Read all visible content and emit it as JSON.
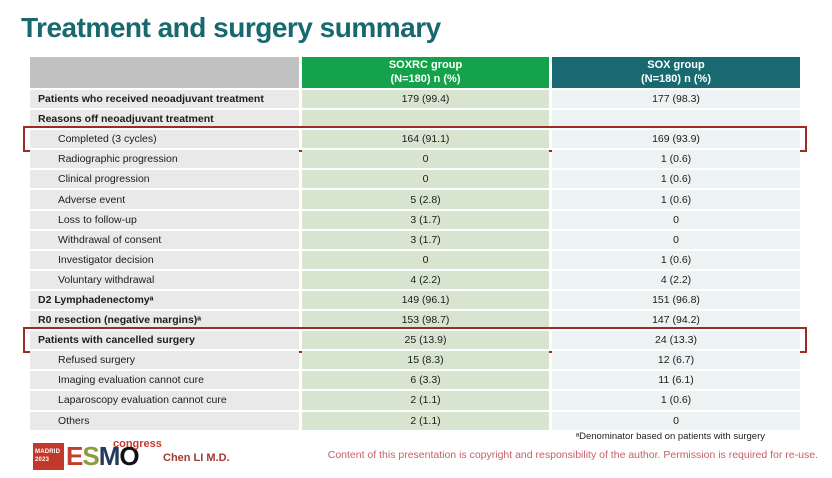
{
  "slide": {
    "title": "Treatment and surgery summary",
    "table": {
      "label_header": "",
      "col_headers": {
        "soxrc": "SOXRC group\n(N=180)  n (%)",
        "sox": "SOX group\n(N=180)  n (%)"
      },
      "rows": [
        {
          "label": "Patients who received neoadjuvant treatment",
          "soxrc": "179 (99.4)",
          "sox": "177 (98.3)",
          "bold": true,
          "indent": false,
          "highlight": false
        },
        {
          "label": "Reasons off neoadjuvant treatment",
          "soxrc": "",
          "sox": "",
          "bold": true,
          "indent": false,
          "highlight": false
        },
        {
          "label": "Completed (3 cycles)",
          "soxrc": "164 (91.1)",
          "sox": "169 (93.9)",
          "bold": false,
          "indent": true,
          "highlight": true
        },
        {
          "label": "Radiographic progression",
          "soxrc": "0",
          "sox": "1 (0.6)",
          "bold": false,
          "indent": true,
          "highlight": false
        },
        {
          "label": "Clinical progression",
          "soxrc": "0",
          "sox": "1 (0.6)",
          "bold": false,
          "indent": true,
          "highlight": false
        },
        {
          "label": "Adverse event",
          "soxrc": "5 (2.8)",
          "sox": "1 (0.6)",
          "bold": false,
          "indent": true,
          "highlight": false
        },
        {
          "label": "Loss to follow-up",
          "soxrc": "3 (1.7)",
          "sox": "0",
          "bold": false,
          "indent": true,
          "highlight": false
        },
        {
          "label": "Withdrawal of consent",
          "soxrc": "3 (1.7)",
          "sox": "0",
          "bold": false,
          "indent": true,
          "highlight": false
        },
        {
          "label": "Investigator decision",
          "soxrc": "0",
          "sox": "1 (0.6)",
          "bold": false,
          "indent": true,
          "highlight": false
        },
        {
          "label": "Voluntary withdrawal",
          "soxrc": "4 (2.2)",
          "sox": "4 (2.2)",
          "bold": false,
          "indent": true,
          "highlight": false
        },
        {
          "label": "D2 Lymphadenectomyᵃ",
          "soxrc": "149 (96.1)",
          "sox": "151 (96.8)",
          "bold": true,
          "indent": false,
          "highlight": false
        },
        {
          "label": "R0 resection (negative margins)ᵃ",
          "soxrc": "153 (98.7)",
          "sox": "147 (94.2)",
          "bold": true,
          "indent": false,
          "highlight": false
        },
        {
          "label": "Patients with cancelled surgery",
          "soxrc": "25 (13.9)",
          "sox": "24 (13.3)",
          "bold": true,
          "indent": false,
          "highlight": true
        },
        {
          "label": "Refused surgery",
          "soxrc": "15 (8.3)",
          "sox": "12 (6.7)",
          "bold": false,
          "indent": true,
          "highlight": false
        },
        {
          "label": "Imaging evaluation cannot cure",
          "soxrc": "6 (3.3)",
          "sox": "11 (6.1)",
          "bold": false,
          "indent": true,
          "highlight": false
        },
        {
          "label": "Laparoscopy evaluation cannot cure",
          "soxrc": "2 (1.1)",
          "sox": "1 (0.6)",
          "bold": false,
          "indent": true,
          "highlight": false
        },
        {
          "label": "Others",
          "soxrc": "2 (1.1)",
          "sox": "0",
          "bold": false,
          "indent": true,
          "highlight": false
        }
      ]
    },
    "footnote": "ᵃDenominator based on patients with surgery",
    "copyright": "Content of this presentation is copyright and responsibility of the author. Permission is required for re-use.",
    "author": "Chen LI M.D.",
    "logo": {
      "city": "MADRID",
      "year": "2023",
      "letters": {
        "e": "E",
        "s": "S",
        "m": "M",
        "o": "O"
      },
      "congress": "congress"
    },
    "colors": {
      "title_teal": "#17696e",
      "header_green": "#14a24b",
      "header_teal": "#186a70",
      "header_gray": "#c1c1c1",
      "label_cell": "#e9e9e9",
      "soxrc_cell": "#d7e5d0",
      "sox_cell": "#edf2f2",
      "highlight_red": "#9e2b25",
      "copyright_red": "#c4606a"
    }
  }
}
